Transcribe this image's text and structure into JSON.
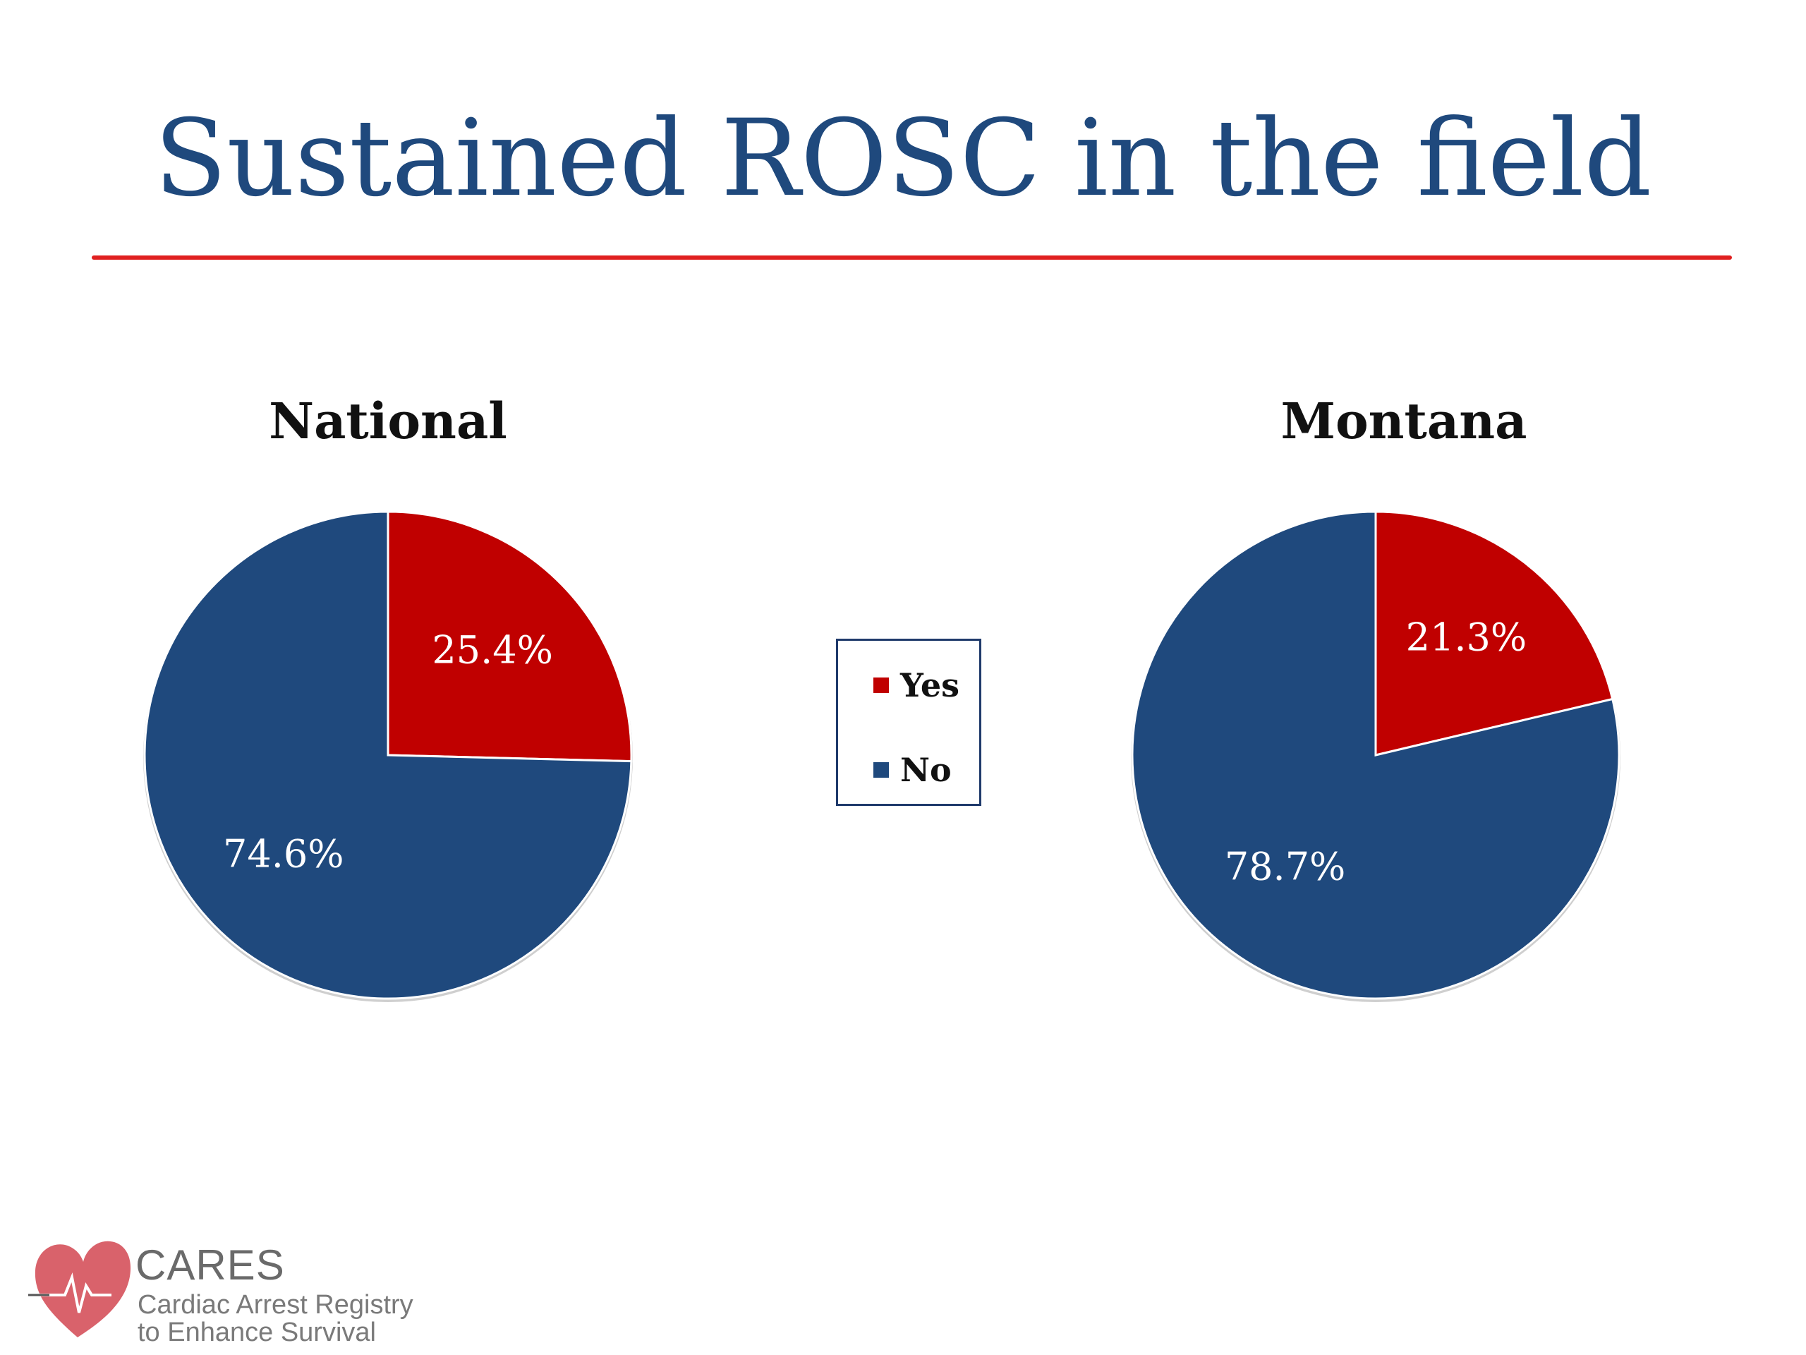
{
  "slide": {
    "title": "Sustained ROSC in the field",
    "title_color": "#1f497d",
    "rule_color": "#e02020"
  },
  "legend": {
    "items": [
      {
        "label": "Yes",
        "color": "#c00000"
      },
      {
        "label": "No",
        "color": "#1f497d"
      }
    ]
  },
  "chart_data": [
    {
      "type": "pie",
      "title": "National",
      "labels": [
        "Yes",
        "No"
      ],
      "values": [
        25.4,
        74.6
      ],
      "value_labels": [
        "25.4%",
        "74.6%"
      ],
      "colors": [
        "#c00000",
        "#1f497d"
      ]
    },
    {
      "type": "pie",
      "title": "Montana",
      "labels": [
        "Yes",
        "No"
      ],
      "values": [
        21.3,
        78.7
      ],
      "value_labels": [
        "21.3%",
        "78.7%"
      ],
      "colors": [
        "#c00000",
        "#1f497d"
      ]
    }
  ],
  "logo": {
    "name": "CARES",
    "line1": "Cardiac Arrest Registry",
    "line2": "to Enhance Survival",
    "heart_color": "#d9626b"
  }
}
